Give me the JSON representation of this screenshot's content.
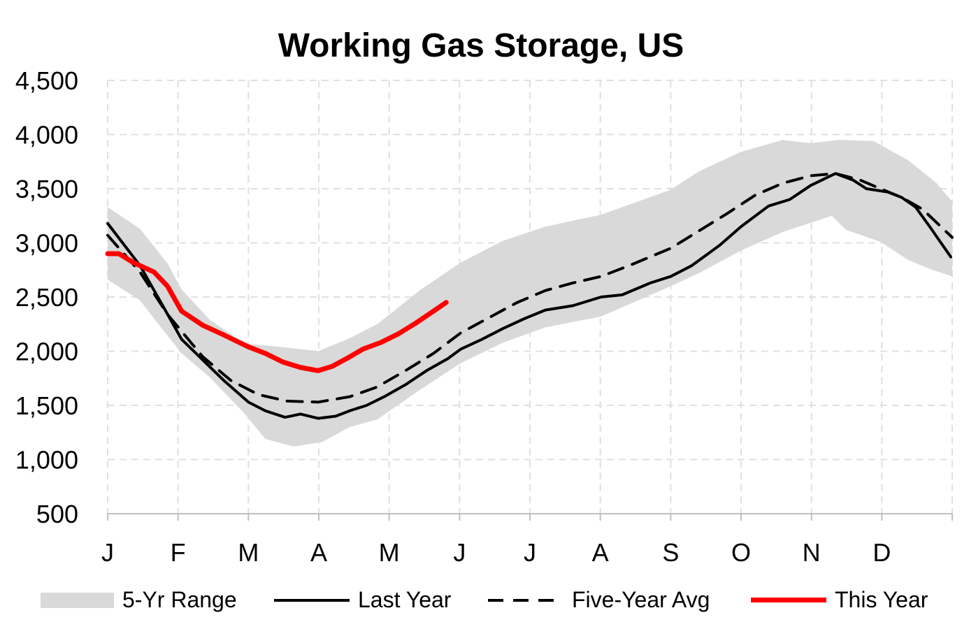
{
  "chart_data": {
    "type": "line",
    "title": "Working Gas Storage, US",
    "xlabel": "",
    "ylabel": "",
    "ylim": [
      500,
      4500
    ],
    "yticks": [
      "500",
      "1,000",
      "1,500",
      "2,000",
      "2,500",
      "3,000",
      "3,500",
      "4,000",
      "4,500"
    ],
    "ytick_values": [
      500,
      1000,
      1500,
      2000,
      2500,
      3000,
      3500,
      4000,
      4500
    ],
    "xlim": [
      0,
      12
    ],
    "xticks": [
      "J",
      "F",
      "M",
      "A",
      "M",
      "J",
      "J",
      "A",
      "S",
      "O",
      "N",
      "D"
    ],
    "grid": true,
    "legend": "bottom",
    "colors": {
      "range": "#d9d9d9",
      "last_year": "#000000",
      "five_year_avg": "#000000",
      "this_year": "#ff0000"
    },
    "range_band": {
      "name": "5-Yr Range",
      "upper": [
        [
          0,
          3330
        ],
        [
          0.46,
          3130
        ],
        [
          0.85,
          2810
        ],
        [
          1.05,
          2570
        ],
        [
          1.45,
          2290
        ],
        [
          1.95,
          2070
        ],
        [
          2.44,
          2040
        ],
        [
          2.99,
          2000
        ],
        [
          3.44,
          2120
        ],
        [
          3.83,
          2250
        ],
        [
          4.43,
          2560
        ],
        [
          5.02,
          2820
        ],
        [
          5.62,
          3020
        ],
        [
          6.22,
          3150
        ],
        [
          7.01,
          3260
        ],
        [
          8.0,
          3490
        ],
        [
          8.4,
          3660
        ],
        [
          9.0,
          3840
        ],
        [
          9.59,
          3950
        ],
        [
          9.99,
          3920
        ],
        [
          10.39,
          3950
        ],
        [
          10.88,
          3940
        ],
        [
          11.38,
          3760
        ],
        [
          11.78,
          3550
        ],
        [
          12,
          3380
        ]
      ],
      "lower": [
        [
          0,
          2660
        ],
        [
          0.46,
          2470
        ],
        [
          0.66,
          2300
        ],
        [
          1.05,
          1980
        ],
        [
          1.45,
          1760
        ],
        [
          1.95,
          1420
        ],
        [
          2.24,
          1190
        ],
        [
          2.64,
          1120
        ],
        [
          3.04,
          1160
        ],
        [
          3.44,
          1300
        ],
        [
          3.83,
          1370
        ],
        [
          4.43,
          1640
        ],
        [
          5.02,
          1890
        ],
        [
          5.62,
          2080
        ],
        [
          6.22,
          2220
        ],
        [
          7.01,
          2320
        ],
        [
          8.0,
          2600
        ],
        [
          8.4,
          2720
        ],
        [
          9.0,
          2930
        ],
        [
          9.59,
          3100
        ],
        [
          10.29,
          3250
        ],
        [
          10.49,
          3120
        ],
        [
          10.98,
          3010
        ],
        [
          11.38,
          2840
        ],
        [
          11.68,
          2760
        ],
        [
          12,
          2690
        ]
      ]
    },
    "series": [
      {
        "name": "Last Year",
        "style": "solid",
        "points": [
          [
            0,
            3180
          ],
          [
            0.46,
            2790
          ],
          [
            0.8,
            2400
          ],
          [
            1.05,
            2110
          ],
          [
            1.35,
            1920
          ],
          [
            1.65,
            1730
          ],
          [
            2.0,
            1530
          ],
          [
            2.24,
            1450
          ],
          [
            2.52,
            1390
          ],
          [
            2.74,
            1420
          ],
          [
            2.99,
            1380
          ],
          [
            3.24,
            1400
          ],
          [
            3.44,
            1450
          ],
          [
            3.68,
            1500
          ],
          [
            3.93,
            1580
          ],
          [
            4.23,
            1690
          ],
          [
            4.53,
            1820
          ],
          [
            4.83,
            1930
          ],
          [
            5.02,
            2020
          ],
          [
            5.32,
            2110
          ],
          [
            5.62,
            2210
          ],
          [
            5.92,
            2300
          ],
          [
            6.22,
            2380
          ],
          [
            6.61,
            2420
          ],
          [
            7.01,
            2500
          ],
          [
            7.31,
            2520
          ],
          [
            7.71,
            2630
          ],
          [
            8.0,
            2690
          ],
          [
            8.3,
            2790
          ],
          [
            8.7,
            2980
          ],
          [
            9.0,
            3150
          ],
          [
            9.39,
            3340
          ],
          [
            9.69,
            3400
          ],
          [
            9.99,
            3530
          ],
          [
            10.34,
            3640
          ],
          [
            10.59,
            3580
          ],
          [
            10.78,
            3500
          ],
          [
            11.08,
            3470
          ],
          [
            11.28,
            3420
          ],
          [
            11.48,
            3330
          ],
          [
            11.68,
            3150
          ],
          [
            11.98,
            2870
          ]
        ]
      },
      {
        "name": "Five-Year Avg",
        "style": "dashed",
        "points": [
          [
            0,
            3070
          ],
          [
            0.46,
            2730
          ],
          [
            0.85,
            2340
          ],
          [
            1.35,
            1950
          ],
          [
            1.75,
            1730
          ],
          [
            2.14,
            1600
          ],
          [
            2.54,
            1540
          ],
          [
            2.99,
            1530
          ],
          [
            3.44,
            1580
          ],
          [
            3.83,
            1670
          ],
          [
            4.23,
            1820
          ],
          [
            4.63,
            1980
          ],
          [
            5.02,
            2170
          ],
          [
            5.42,
            2310
          ],
          [
            5.82,
            2450
          ],
          [
            6.22,
            2560
          ],
          [
            6.61,
            2630
          ],
          [
            7.01,
            2690
          ],
          [
            7.41,
            2790
          ],
          [
            8.0,
            2950
          ],
          [
            8.4,
            3110
          ],
          [
            8.8,
            3270
          ],
          [
            9.2,
            3440
          ],
          [
            9.59,
            3550
          ],
          [
            9.99,
            3620
          ],
          [
            10.34,
            3640
          ],
          [
            10.69,
            3580
          ],
          [
            10.98,
            3500
          ],
          [
            11.28,
            3420
          ],
          [
            11.58,
            3310
          ],
          [
            12,
            3050
          ]
        ]
      },
      {
        "name": "This Year",
        "style": "solid-thick",
        "points": [
          [
            0,
            2900
          ],
          [
            0.16,
            2900
          ],
          [
            0.36,
            2820
          ],
          [
            0.66,
            2730
          ],
          [
            0.85,
            2600
          ],
          [
            1.05,
            2370
          ],
          [
            1.35,
            2240
          ],
          [
            1.65,
            2150
          ],
          [
            2.0,
            2040
          ],
          [
            2.24,
            1980
          ],
          [
            2.49,
            1900
          ],
          [
            2.74,
            1850
          ],
          [
            2.99,
            1820
          ],
          [
            3.19,
            1860
          ],
          [
            3.39,
            1930
          ],
          [
            3.63,
            2020
          ],
          [
            3.88,
            2080
          ],
          [
            4.13,
            2160
          ],
          [
            4.38,
            2260
          ],
          [
            4.63,
            2370
          ],
          [
            4.81,
            2450
          ]
        ]
      }
    ]
  }
}
